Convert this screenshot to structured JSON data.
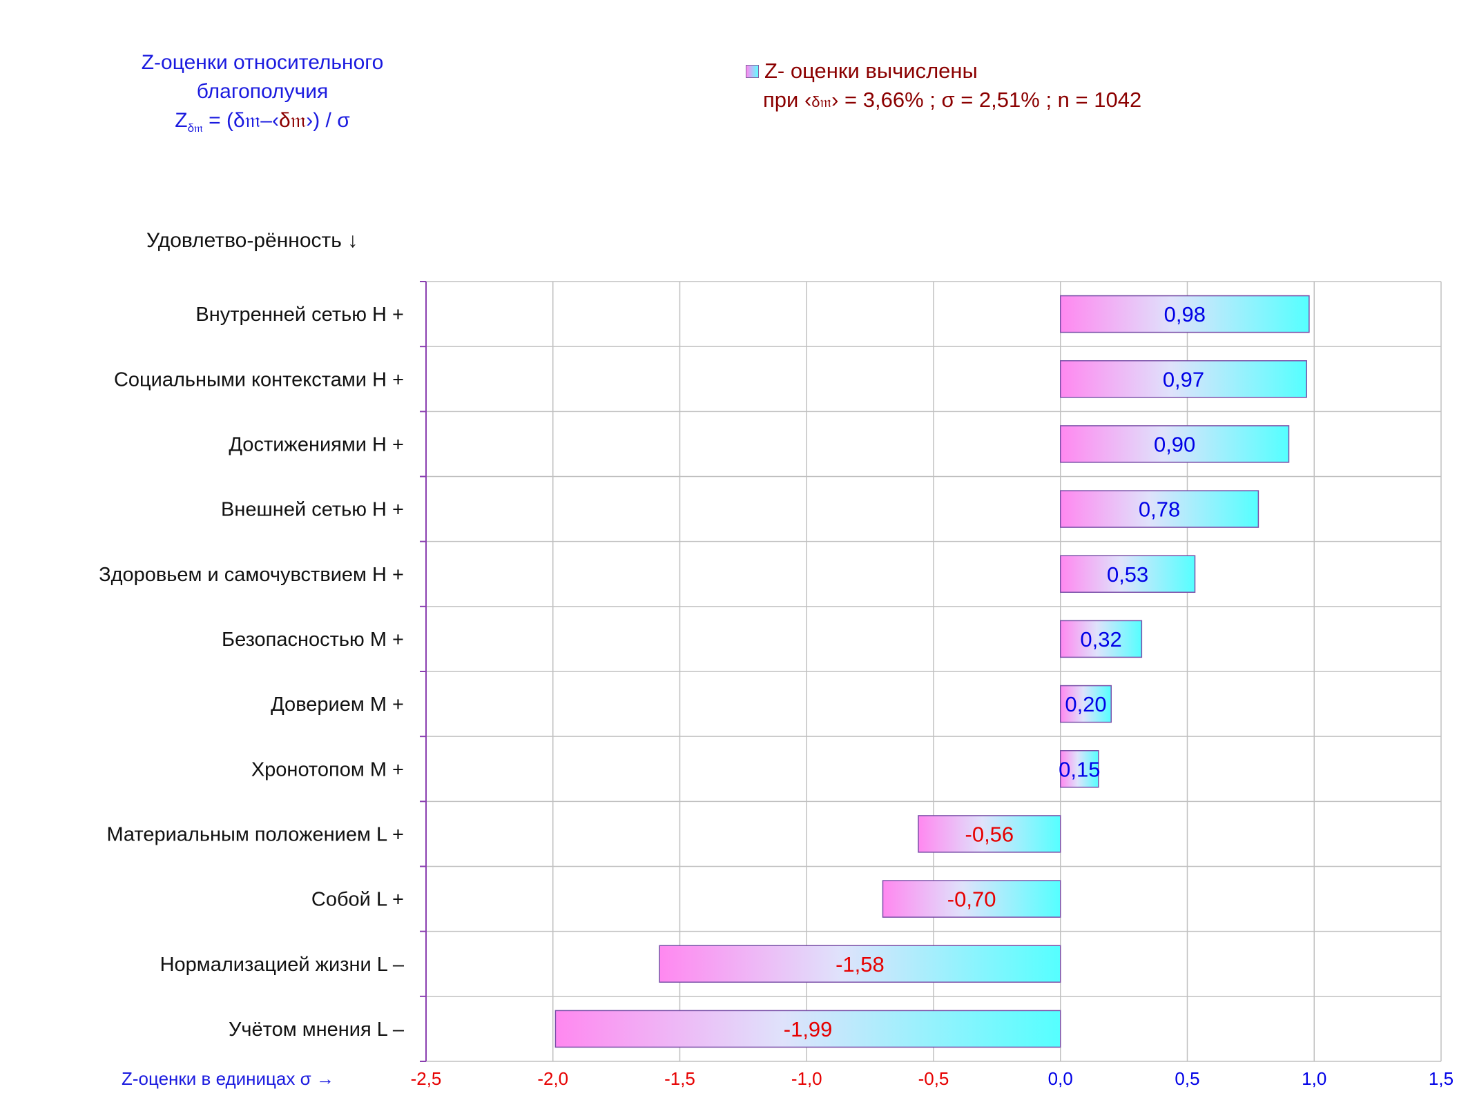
{
  "title": {
    "line1": "Z-оценки  относительного",
    "line2": "благополучия",
    "formula_z": "Z",
    "formula_sub": "δ𝔪",
    "formula_mid": " = (δ𝔪–‹",
    "formula_mean": "δ𝔪",
    "formula_end": "›)  / σ"
  },
  "legend": {
    "label": "Z- оценки вычислены",
    "params_prefix": "при ‹",
    "params_symbol": "δ𝔪",
    "params_rest": "› = 3,66% ; σ = 2,51% ; n = 1042"
  },
  "y_axis_title": "Удовлетво-рённость ↓",
  "x_axis_caption": "Z-оценки в единицах σ →",
  "colors": {
    "bar_start": "#ff88f0",
    "bar_mid": "#dfe2fb",
    "bar_end": "#55ffff",
    "bar_border": "#7a4fa8",
    "positive_text": "#0000e6",
    "negative_text": "#e60000",
    "grid": "#c0c0c0",
    "axis": "#8a3fb0",
    "category_text": "#111111"
  },
  "chart_data": {
    "type": "bar",
    "orientation": "horizontal",
    "categories": [
      "Внутренней сетью  H +",
      "Социальными контекстами  H +",
      "Достижениями  H +",
      "Внешней сетью  H +",
      "Здоровьем и самочувствием  H +",
      "Безопасностью  M +",
      "Доверием  M +",
      "Хронотопом  M +",
      "Материальным положением  L +",
      "Собой  L +",
      "Нормализацией жизни  L –",
      "Учётом мнения  L –"
    ],
    "values": [
      0.98,
      0.97,
      0.9,
      0.78,
      0.53,
      0.32,
      0.2,
      0.15,
      -0.56,
      -0.7,
      -1.58,
      -1.99
    ],
    "value_labels": [
      "0,98",
      "0,97",
      "0,90",
      "0,78",
      "0,53",
      "0,32",
      "0,20",
      "0,15",
      "-0,56",
      "-0,70",
      "-1,58",
      "-1,99"
    ],
    "xlim": [
      -2.5,
      1.5
    ],
    "x_ticks": [
      -2.5,
      -2.0,
      -1.5,
      -1.0,
      -0.5,
      0.0,
      0.5,
      1.0,
      1.5
    ],
    "x_tick_labels": [
      "-2,5",
      "-2,0",
      "-1,5",
      "-1,0",
      "-0,5",
      "0,0",
      "0,5",
      "1,0",
      "1,5"
    ],
    "grid": true,
    "legend_position": "top-right"
  }
}
